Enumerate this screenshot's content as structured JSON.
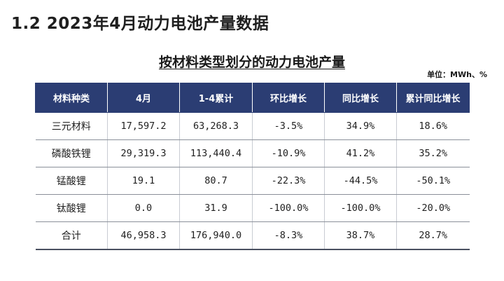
{
  "page": {
    "title": "1.2 2023年4月动力电池产量数据"
  },
  "table_title": "按材料类型划分的动力电池产量",
  "unit": "单位：MWh、%",
  "table": {
    "headers": [
      "材料种类",
      "4月",
      "1-4累计",
      "环比增长",
      "同比增长",
      "累计同比增长"
    ],
    "rows": [
      [
        "三元材料",
        "17,597.2",
        "63,268.3",
        "-3.5%",
        "34.9%",
        "18.6%"
      ],
      [
        "磷酸铁锂",
        "29,319.3",
        "113,440.4",
        "-10.9%",
        "41.2%",
        "35.2%"
      ],
      [
        "锰酸锂",
        "19.1",
        "80.7",
        "-22.3%",
        "-44.5%",
        "-50.1%"
      ],
      [
        "钛酸锂",
        "0.0",
        "31.9",
        "-100.0%",
        "-100.0%",
        "-20.0%"
      ],
      [
        "合计",
        "46,958.3",
        "176,940.0",
        "-8.3%",
        "38.7%",
        "28.7%"
      ]
    ]
  },
  "colors": {
    "header_bg": "#2b3d73",
    "header_text": "#ffffff"
  }
}
